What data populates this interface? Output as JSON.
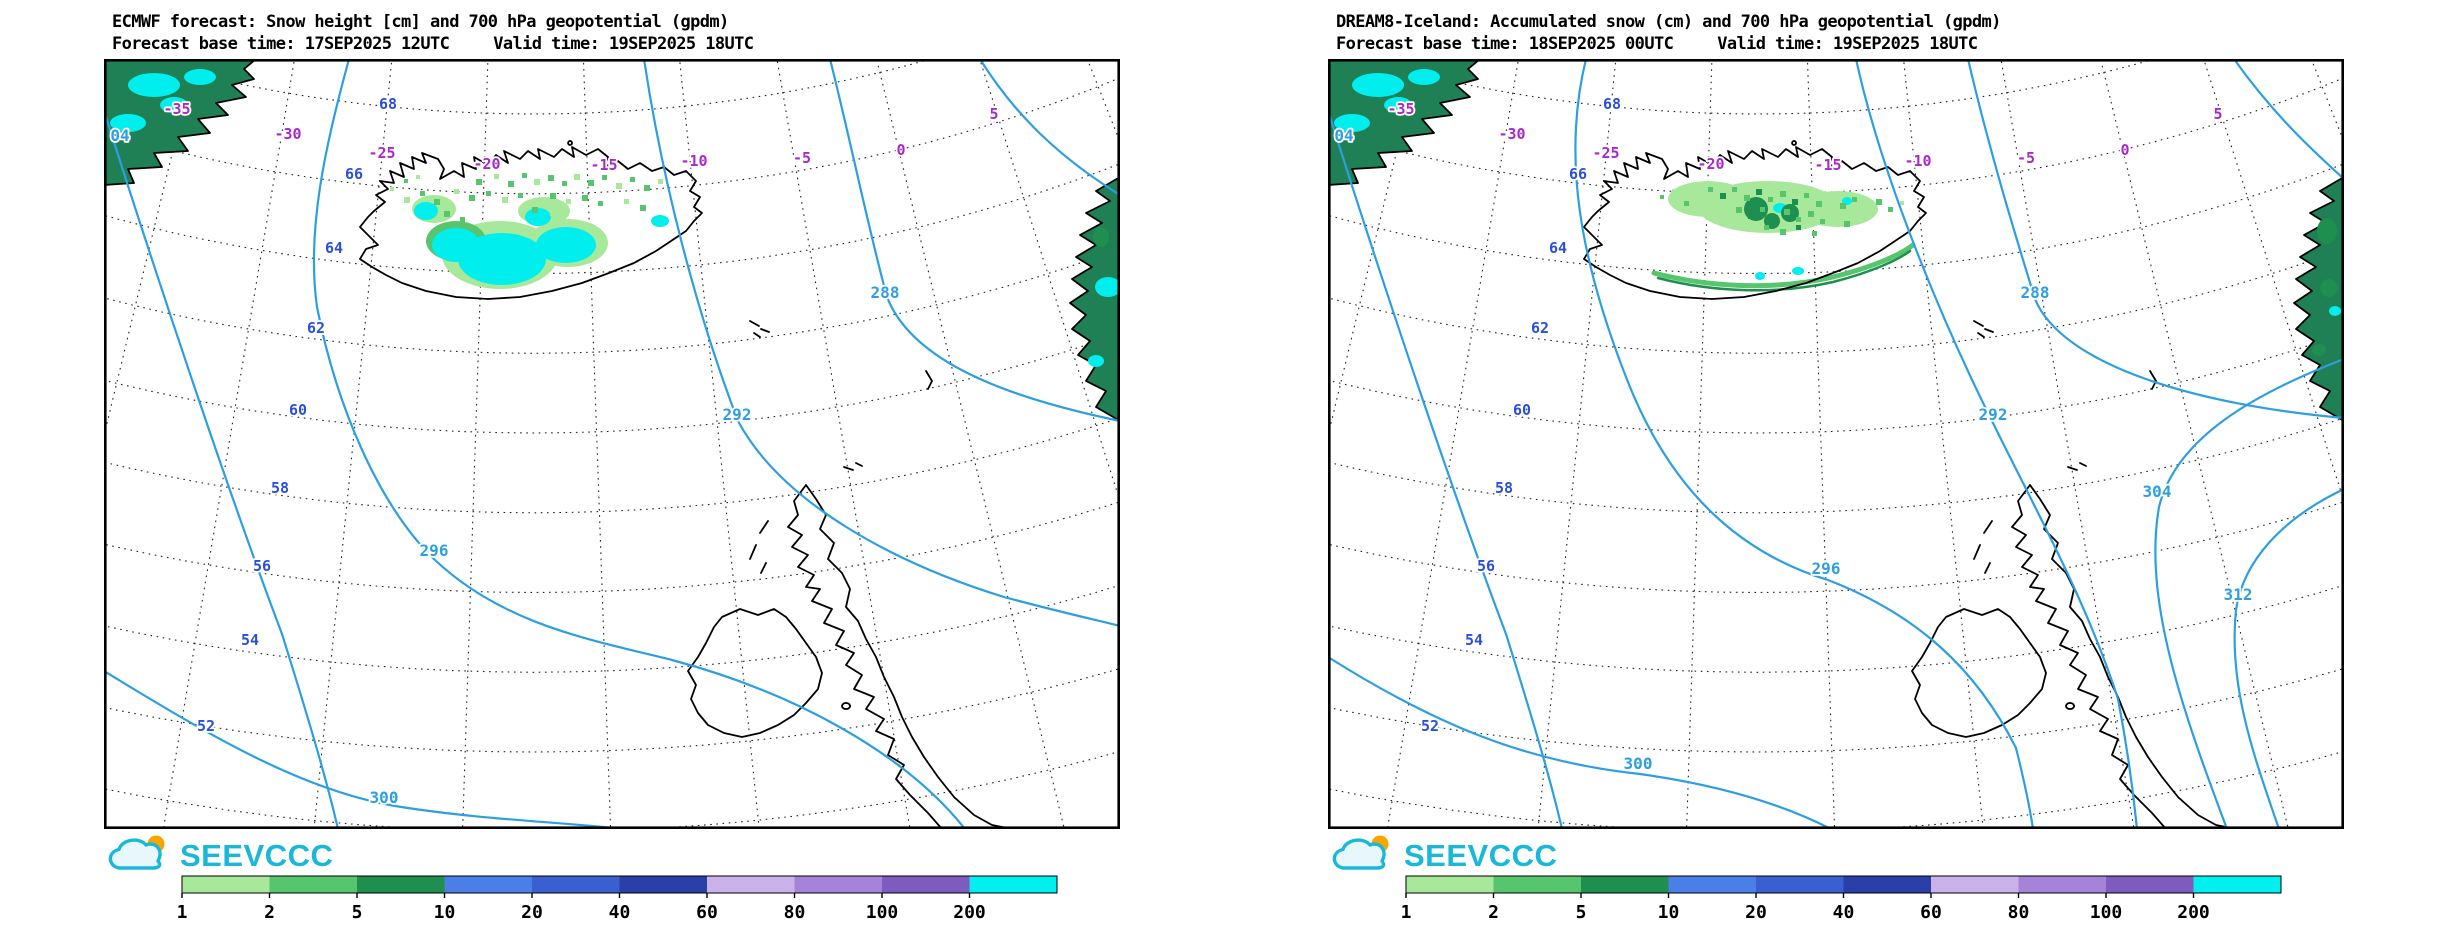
{
  "panels": [
    {
      "id": "ecmwf",
      "title": "ECMWF forecast: Snow height [cm] and 700 hPa geopotential (gpdm)",
      "base_time": "Forecast base time: 17SEP2025 12UTC",
      "valid_time": "Valid time: 19SEP2025 18UTC",
      "geopotential_contour_labels": [
        "04",
        "288",
        "292",
        "296",
        "300"
      ],
      "longitude_labels": [
        "-35",
        "-30",
        "-25",
        "-20",
        "-15",
        "-10",
        "-5",
        "0",
        "5"
      ],
      "latitude_labels": [
        "68",
        "66",
        "64",
        "62",
        "60",
        "58",
        "56",
        "54",
        "52"
      ]
    },
    {
      "id": "dream8",
      "title": "DREAM8-Iceland: Accumulated snow (cm) and 700 hPa geopotential (gpdm)",
      "base_time": "Forecast base time: 18SEP2025 00UTC",
      "valid_time": "Valid time: 19SEP2025 18UTC",
      "geopotential_contour_labels": [
        "04",
        "288",
        "292",
        "296",
        "300",
        "304",
        "312"
      ],
      "longitude_labels": [
        "-35",
        "-30",
        "-25",
        "-20",
        "-15",
        "-10",
        "-5",
        "0",
        "5"
      ],
      "latitude_labels": [
        "68",
        "66",
        "64",
        "62",
        "60",
        "58",
        "56",
        "54",
        "52"
      ]
    }
  ],
  "logo": {
    "text": "SEEVCCC"
  },
  "colorbar": {
    "tick_labels": [
      "1",
      "2",
      "5",
      "10",
      "20",
      "40",
      "60",
      "80",
      "100",
      "200"
    ],
    "segment_colors": [
      "#a8e89a",
      "#57c56d",
      "#1e8f4e",
      "#4a7fe8",
      "#3a5fd0",
      "#2a3fa8",
      "#cbb3ea",
      "#a583d8",
      "#7d5bbf",
      "#00f0f0"
    ]
  },
  "colors": {
    "geopotential_line": "#2d9fe0",
    "longitude_label": "#a928cc",
    "latitude_label": "#2b50d8",
    "coastline": "#000000",
    "graticule": "#222222",
    "snow_land_fill": "#1f8055",
    "snow_cyan": "#00eeee",
    "snow_light_green": "#a8e89a",
    "snow_green": "#57c56d",
    "snow_dark_green": "#1e8f4e",
    "logo_cyan": "#1ab8d8",
    "logo_orange": "#f7a600",
    "title_text": "#000000"
  }
}
